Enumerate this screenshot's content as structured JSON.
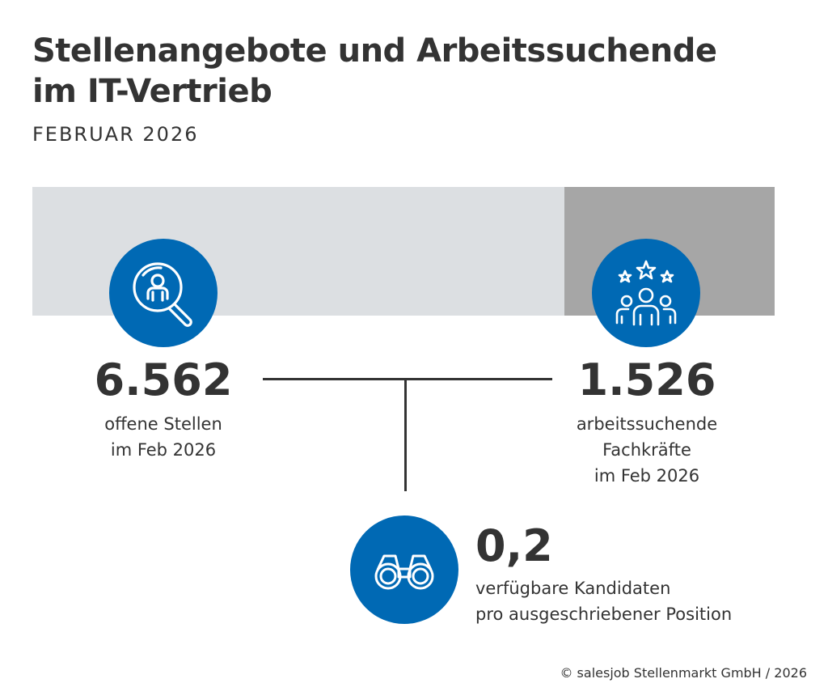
{
  "header": {
    "title_line1": "Stellenangebote und Arbeitssuchende",
    "title_line2": "im IT-Vertrieb",
    "subtitle": "FEBRUAR 2026"
  },
  "colors": {
    "accent": "#0069b4",
    "bar_light": "#dcdfe2",
    "bar_dark": "#a6a6a6",
    "text": "#333333"
  },
  "stats": {
    "open_positions": {
      "value": "6.562",
      "label_line1": "offene Stellen",
      "label_line2": "im Feb 2026",
      "icon": "search-person-icon"
    },
    "job_seekers": {
      "value": "1.526",
      "label_line1": "arbeitssuchende",
      "label_line2": "Fachkräfte",
      "label_line3": "im Feb 2026",
      "icon": "team-stars-icon"
    },
    "ratio": {
      "value": "0,2",
      "label_line1": "verfügbare Kandidaten",
      "label_line2": "pro ausgeschriebener Position",
      "icon": "binoculars-icon"
    }
  },
  "footer": {
    "copyright": "© salesjob Stellenmarkt GmbH / 2026"
  }
}
